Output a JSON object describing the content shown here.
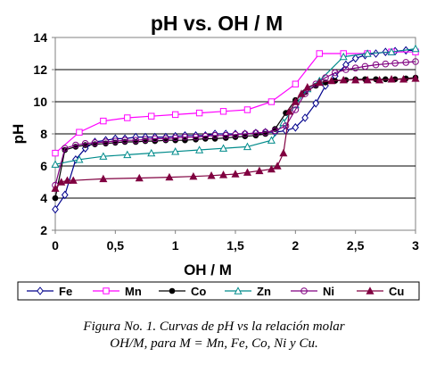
{
  "chart_data": {
    "type": "line",
    "title": "pH vs. OH / M",
    "xlabel": "OH / M",
    "ylabel": "pH",
    "xlim": [
      0,
      3
    ],
    "ylim": [
      2,
      14
    ],
    "x_ticks": [
      "0",
      "0,5",
      "1",
      "1,5",
      "2",
      "2,5",
      "3"
    ],
    "y_ticks": [
      "2",
      "4",
      "6",
      "8",
      "10",
      "12",
      "14"
    ],
    "grid": "horizontal",
    "legend": "bottom",
    "series": [
      {
        "name": "Fe",
        "color": "#00008b",
        "marker": "diamond",
        "x": [
          0,
          0.08,
          0.17,
          0.25,
          0.33,
          0.42,
          0.5,
          0.58,
          0.67,
          0.75,
          0.83,
          0.92,
          1.0,
          1.08,
          1.17,
          1.25,
          1.33,
          1.42,
          1.5,
          1.58,
          1.67,
          1.75,
          1.83,
          1.92,
          2.0,
          2.08,
          2.17,
          2.25,
          2.33,
          2.42,
          2.5,
          2.58,
          2.67,
          2.75,
          2.83,
          2.92,
          3.0
        ],
        "y": [
          3.3,
          4.2,
          6.4,
          7.1,
          7.5,
          7.6,
          7.7,
          7.7,
          7.8,
          7.8,
          7.8,
          7.8,
          7.85,
          7.9,
          7.9,
          7.9,
          8.0,
          8.0,
          8.0,
          8.0,
          8.05,
          8.1,
          8.1,
          8.2,
          8.4,
          9.0,
          9.9,
          11.0,
          11.6,
          12.3,
          12.7,
          12.9,
          13.0,
          13.1,
          13.15,
          13.2,
          13.2
        ]
      },
      {
        "name": "Mn",
        "color": "#ff00ff",
        "marker": "square",
        "x": [
          0,
          0.2,
          0.4,
          0.6,
          0.8,
          1.0,
          1.2,
          1.4,
          1.6,
          1.8,
          2.0,
          2.2,
          2.4,
          2.6,
          2.8,
          3.0
        ],
        "y": [
          6.8,
          8.1,
          8.8,
          9.0,
          9.1,
          9.2,
          9.3,
          9.4,
          9.5,
          10.0,
          11.1,
          13.0,
          13.0,
          13.0,
          13.1,
          13.1
        ]
      },
      {
        "name": "Co",
        "color": "#000000",
        "marker": "circle-filled",
        "x": [
          0,
          0.08,
          0.17,
          0.25,
          0.33,
          0.42,
          0.5,
          0.58,
          0.67,
          0.75,
          0.83,
          0.92,
          1.0,
          1.08,
          1.17,
          1.25,
          1.33,
          1.42,
          1.5,
          1.58,
          1.67,
          1.75,
          1.83,
          1.92,
          2.0,
          2.08,
          2.17,
          2.25,
          2.33,
          2.42,
          2.5,
          2.58,
          2.67,
          2.75,
          2.83,
          2.92,
          3.0
        ],
        "y": [
          4.0,
          7.0,
          7.2,
          7.3,
          7.35,
          7.4,
          7.45,
          7.5,
          7.5,
          7.55,
          7.55,
          7.6,
          7.6,
          7.6,
          7.65,
          7.7,
          7.7,
          7.75,
          7.8,
          7.85,
          7.9,
          8.0,
          8.3,
          9.3,
          10.1,
          10.6,
          11.0,
          11.2,
          11.3,
          11.35,
          11.4,
          11.4,
          11.4,
          11.4,
          11.4,
          11.45,
          11.5
        ]
      },
      {
        "name": "Zn",
        "color": "#008b8b",
        "marker": "triangle",
        "x": [
          0,
          0.2,
          0.4,
          0.6,
          0.8,
          1.0,
          1.2,
          1.4,
          1.6,
          1.8,
          1.9,
          2.0,
          2.1,
          2.2,
          2.4,
          2.6,
          2.8,
          3.0
        ],
        "y": [
          6.1,
          6.4,
          6.6,
          6.7,
          6.8,
          6.9,
          7.0,
          7.1,
          7.2,
          7.6,
          8.7,
          9.8,
          10.8,
          11.3,
          12.8,
          13.0,
          13.1,
          13.3
        ]
      },
      {
        "name": "Ni",
        "color": "#800080",
        "marker": "circle-open",
        "x": [
          0,
          0.08,
          0.17,
          0.25,
          0.33,
          0.42,
          0.5,
          0.58,
          0.67,
          0.75,
          0.83,
          0.92,
          1.0,
          1.08,
          1.17,
          1.25,
          1.33,
          1.42,
          1.5,
          1.58,
          1.67,
          1.75,
          1.83,
          1.92,
          2.0,
          2.08,
          2.17,
          2.25,
          2.33,
          2.42,
          2.5,
          2.58,
          2.67,
          2.75,
          2.83,
          2.92,
          3.0
        ],
        "y": [
          4.8,
          7.1,
          7.3,
          7.4,
          7.45,
          7.5,
          7.55,
          7.6,
          7.6,
          7.65,
          7.7,
          7.7,
          7.75,
          7.8,
          7.8,
          7.85,
          7.9,
          7.9,
          7.95,
          8.0,
          8.05,
          8.1,
          8.2,
          8.5,
          9.5,
          10.5,
          11.1,
          11.5,
          11.8,
          12.0,
          12.1,
          12.2,
          12.3,
          12.35,
          12.4,
          12.45,
          12.5
        ]
      },
      {
        "name": "Cu",
        "color": "#800040",
        "marker": "triangle-filled",
        "x": [
          0,
          0.05,
          0.1,
          0.15,
          0.4,
          0.7,
          0.95,
          1.15,
          1.3,
          1.4,
          1.5,
          1.6,
          1.7,
          1.8,
          1.85,
          1.9,
          1.95,
          2.0,
          2.05,
          2.1,
          2.2,
          2.3,
          2.4,
          2.5,
          2.6,
          2.7,
          2.8,
          2.9,
          3.0
        ],
        "y": [
          4.6,
          5.0,
          5.1,
          5.1,
          5.2,
          5.25,
          5.3,
          5.35,
          5.4,
          5.45,
          5.5,
          5.6,
          5.7,
          5.8,
          6.0,
          6.8,
          9.4,
          10.0,
          10.5,
          10.9,
          11.2,
          11.3,
          11.35,
          11.35,
          11.35,
          11.35,
          11.4,
          11.4,
          11.45
        ]
      }
    ]
  },
  "caption": {
    "line1": "Figura No. 1. Curvas de pH vs la relación molar",
    "line2": "OH/M, para M = Mn, Fe, Co, Ni  y Cu."
  }
}
